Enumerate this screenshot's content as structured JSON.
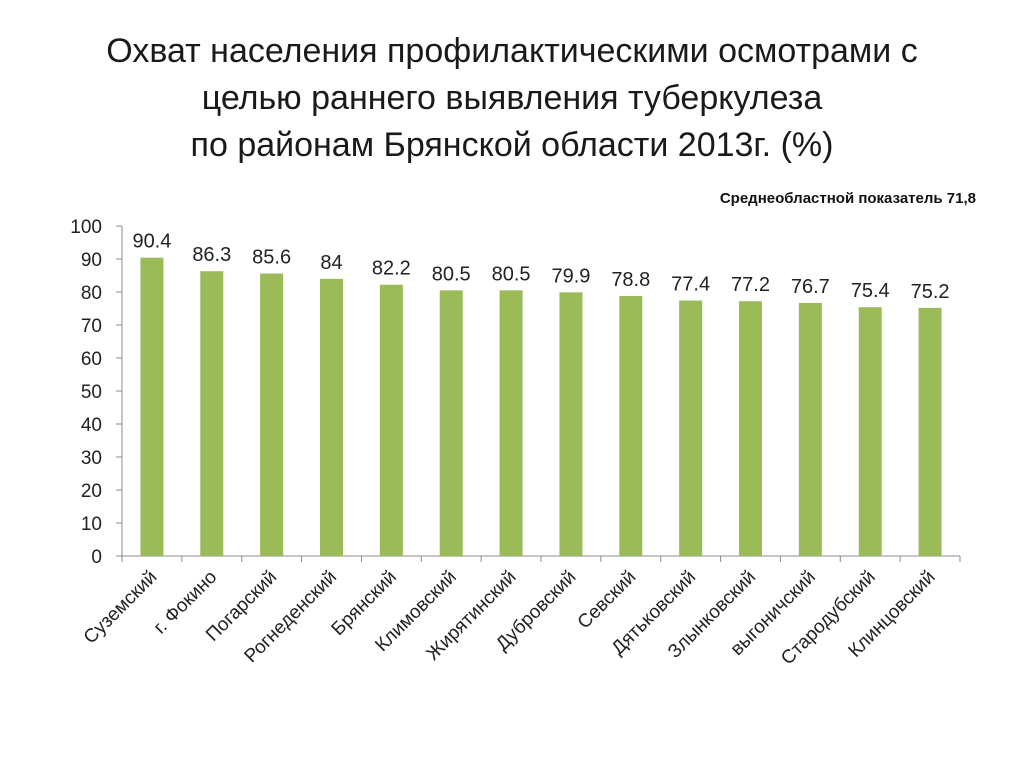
{
  "title_lines": [
    "Охват населения профилактическими осмотрами с",
    "целью раннего выявления туберкулеза",
    "по районам Брянской области 2013г. (%)"
  ],
  "subtitle": "Среднеобластной показатель 71,8",
  "colors": {
    "bar": "#9bbb59",
    "axis": "#8c8c8c"
  },
  "chart_data": {
    "type": "bar",
    "title": "",
    "xlabel": "",
    "ylabel": "",
    "ylim": [
      0,
      100
    ],
    "yticks": [
      0,
      10,
      20,
      30,
      40,
      50,
      60,
      70,
      80,
      90,
      100
    ],
    "grid": false,
    "legend": "none",
    "categories": [
      "Суземский",
      "г. Фокино",
      "Погарский",
      "Рогнеденский",
      "Брянский",
      "Климовский",
      "Жирятинский",
      "Дубровский",
      "Севский",
      "Дятьковский",
      "Злынковский",
      "выгоничский",
      "Стародубский",
      "Клинцовский"
    ],
    "values": [
      90.4,
      86.3,
      85.6,
      84,
      82.2,
      80.5,
      80.5,
      79.9,
      78.8,
      77.4,
      77.2,
      76.7,
      75.4,
      75.2
    ],
    "data_labels": [
      "90.4",
      "86.3",
      "85.6",
      "84",
      "82.2",
      "80.5",
      "80.5",
      "79.9",
      "78.8",
      "77.4",
      "77.2",
      "76.7",
      "75.4",
      "75.2"
    ]
  }
}
